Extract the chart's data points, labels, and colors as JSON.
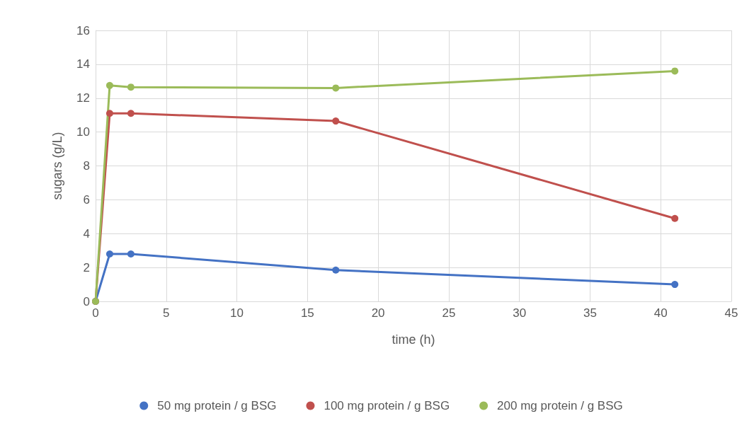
{
  "chart_data": {
    "type": "line",
    "xlabel": "time (h)",
    "ylabel": "sugars (g/L)",
    "xlim": [
      0,
      45
    ],
    "xticks": [
      0,
      5,
      10,
      15,
      20,
      25,
      30,
      35,
      40,
      45
    ],
    "ylim": [
      0,
      16
    ],
    "yticks": [
      0,
      2,
      4,
      6,
      8,
      10,
      12,
      14,
      16
    ],
    "grid": true,
    "legend": "bottom",
    "marker": "circle",
    "line_style": "solid",
    "series": [
      {
        "name": "50 mg protein / g BSG",
        "color": "#4472c4",
        "x": [
          0,
          1,
          2.5,
          17,
          41
        ],
        "values": [
          0,
          2.8,
          2.8,
          1.85,
          1.0
        ]
      },
      {
        "name": "100 mg protein / g BSG",
        "color": "#c0504d",
        "x": [
          0,
          1,
          2.5,
          17,
          41
        ],
        "values": [
          0,
          11.1,
          11.1,
          10.65,
          4.9
        ]
      },
      {
        "name": "200 mg protein / g BSG",
        "color": "#9bbb59",
        "x": [
          0,
          1,
          2.5,
          17,
          41
        ],
        "values": [
          0,
          12.75,
          12.65,
          12.6,
          13.6
        ]
      }
    ]
  }
}
